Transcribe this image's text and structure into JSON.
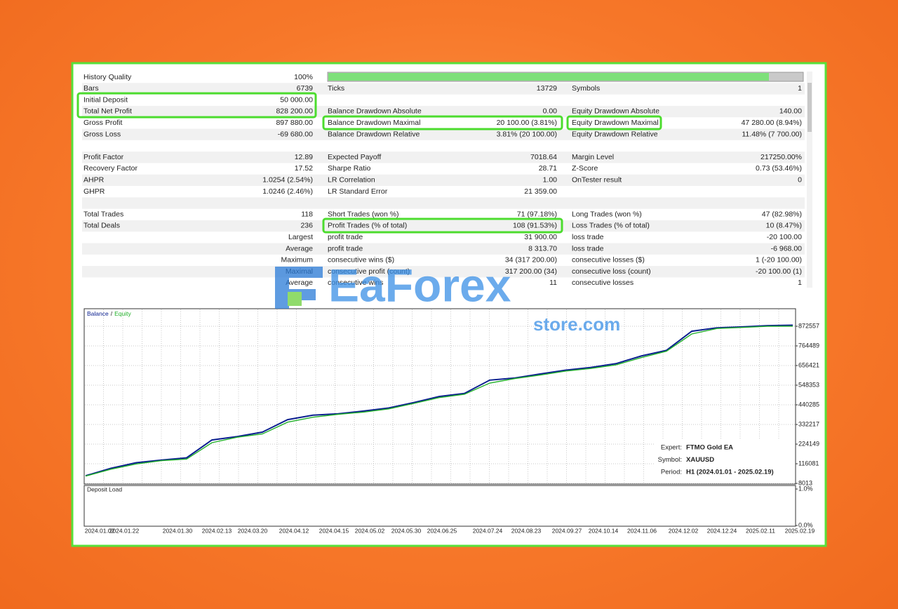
{
  "report": {
    "rows": [
      [
        "History Quality",
        "100%"
      ],
      [
        "Bars",
        "6739",
        "Ticks",
        "13729",
        "Symbols",
        "1"
      ],
      [
        "Initial Deposit",
        "50 000.00"
      ],
      [
        "Total Net Profit",
        "828 200.00",
        "Balance Drawdown Absolute",
        "0.00",
        "Equity Drawdown Absolute",
        "140.00"
      ],
      [
        "Gross Profit",
        "897 880.00",
        "Balance Drawdown Maximal",
        "20 100.00 (3.81%)",
        "Equity Drawdown Maximal",
        "47 280.00 (8.94%)"
      ],
      [
        "Gross Loss",
        "-69 680.00",
        "Balance Drawdown Relative",
        "3.81% (20 100.00)",
        "Equity Drawdown Relative",
        "11.48% (7 700.00)"
      ],
      [],
      [
        "Profit Factor",
        "12.89",
        "Expected Payoff",
        "7018.64",
        "Margin Level",
        "217250.00%"
      ],
      [
        "Recovery Factor",
        "17.52",
        "Sharpe Ratio",
        "28.71",
        "Z-Score",
        "0.73 (53.46%)"
      ],
      [
        "AHPR",
        "1.0254 (2.54%)",
        "LR Correlation",
        "1.00",
        "OnTester result",
        "0"
      ],
      [
        "GHPR",
        "1.0246 (2.46%)",
        "LR Standard Error",
        "21 359.00"
      ],
      [],
      [
        "Total Trades",
        "118",
        "Short Trades (won %)",
        "71 (97.18%)",
        "Long Trades (won %)",
        "47 (82.98%)"
      ],
      [
        "Total Deals",
        "236",
        "Profit Trades (% of total)",
        "108 (91.53%)",
        "Loss Trades (% of total)",
        "10 (8.47%)"
      ],
      [
        null,
        "Largest",
        "profit trade",
        "31 900.00",
        "loss trade",
        "-20 100.00"
      ],
      [
        null,
        "Average",
        "profit trade",
        "8 313.70",
        "loss trade",
        "-6 968.00"
      ],
      [
        null,
        "Maximum",
        "consecutive wins ($)",
        "34 (317 200.00)",
        "consecutive losses ($)",
        "1 (-20 100.00)"
      ],
      [
        null,
        "Maximal",
        "consecutive profit (count)",
        "317 200.00 (34)",
        "consecutive loss (count)",
        "-20 100.00 (1)"
      ],
      [
        null,
        "Average",
        "consecutive wins",
        "11",
        "consecutive losses",
        "1"
      ]
    ]
  },
  "chart_data": {
    "type": "line",
    "legend_separator": "/",
    "series": [
      {
        "name": "Balance",
        "color": "#0a1f8f",
        "values": [
          50000,
          91000,
          122000,
          136000,
          149000,
          247000,
          266000,
          290000,
          359000,
          383000,
          391000,
          406000,
          423000,
          453000,
          486000,
          503000,
          576000,
          588000,
          610000,
          631000,
          646000,
          667000,
          709000,
          740000,
          845000,
          864000,
          869000,
          876000,
          878200
        ]
      },
      {
        "name": "Equity",
        "color": "#22b02a",
        "values": [
          48000,
          86000,
          115000,
          133000,
          142000,
          232000,
          262000,
          280000,
          345000,
          372000,
          388000,
          400000,
          418000,
          448000,
          480000,
          498000,
          560000,
          585000,
          604000,
          626000,
          640000,
          660000,
          700000,
          735000,
          830000,
          860000,
          866000,
          872000,
          873000
        ]
      }
    ],
    "ylim": [
      8013,
      969000
    ],
    "yticks": [
      872557,
      764489,
      656421,
      548353,
      440285,
      332217,
      224149,
      116081,
      8013
    ],
    "x_labels": [
      "2024.01.02",
      "2024.01.22",
      "2024.01.30",
      "2024.02.13",
      "2024.03.20",
      "2024.04.12",
      "2024.04.15",
      "2024.05.02",
      "2024.05.30",
      "2024.06.25",
      "2024.07.24",
      "2024.08.23",
      "2024.09.27",
      "2024.10.14",
      "2024.11.06",
      "2024.12.02",
      "2024.12.24",
      "2025.02.11",
      "2025.02.19"
    ],
    "info": [
      {
        "label": "Expert:",
        "value": "FTMO Gold EA"
      },
      {
        "label": "Symbol:",
        "value": "XAUUSD"
      },
      {
        "label": "Period:",
        "value": "H1 (2024.01.01 - 2025.02.19)"
      }
    ],
    "deposit_load": {
      "title": "Deposit Load",
      "ylim": [
        0,
        1
      ],
      "yticks": [
        {
          "value": 1,
          "label": "1.0%"
        },
        {
          "value": 0,
          "label": "0.0%"
        }
      ]
    }
  },
  "watermark": {
    "brand": "EaForex",
    "domain": "store.com"
  }
}
